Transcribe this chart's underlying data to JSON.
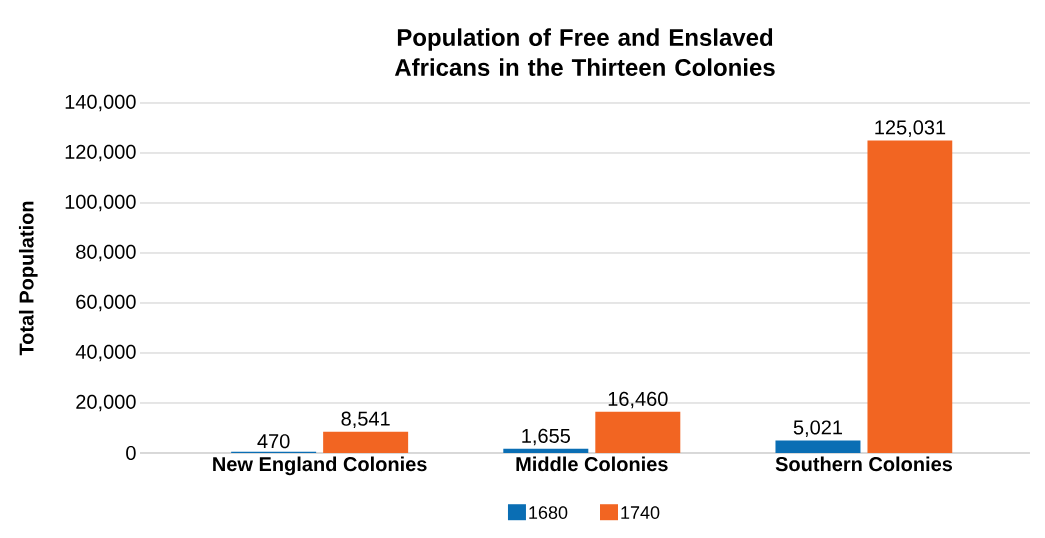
{
  "chart_data": {
    "type": "bar",
    "title": "Population of Free and Enslaved Africans in the Thirteen Colonies",
    "ylabel": "Total Population",
    "categories": [
      "New England Colonies",
      "Middle Colonies",
      "Southern Colonies"
    ],
    "series": [
      {
        "name": "1680",
        "color": "#0a6eb4",
        "values": [
          470,
          1655,
          5021
        ],
        "value_labels": [
          "470",
          "1,655",
          "5,021"
        ]
      },
      {
        "name": "1740",
        "color": "#f26522",
        "values": [
          8541,
          16460,
          125031
        ],
        "value_labels": [
          "8,541",
          "16,460",
          "125,031"
        ]
      }
    ],
    "ylim": [
      0,
      140000
    ],
    "yticks": [
      {
        "value": 0,
        "label": "0"
      },
      {
        "value": 20000,
        "label": "20,000"
      },
      {
        "value": 40000,
        "label": "40,000"
      },
      {
        "value": 60000,
        "label": "60,000"
      },
      {
        "value": 80000,
        "label": "80,000"
      },
      {
        "value": 100000,
        "label": "100,000"
      },
      {
        "value": 120000,
        "label": "120,000"
      },
      {
        "value": 140000,
        "label": "140,000"
      }
    ],
    "grid": "y",
    "legend": "bottom"
  }
}
